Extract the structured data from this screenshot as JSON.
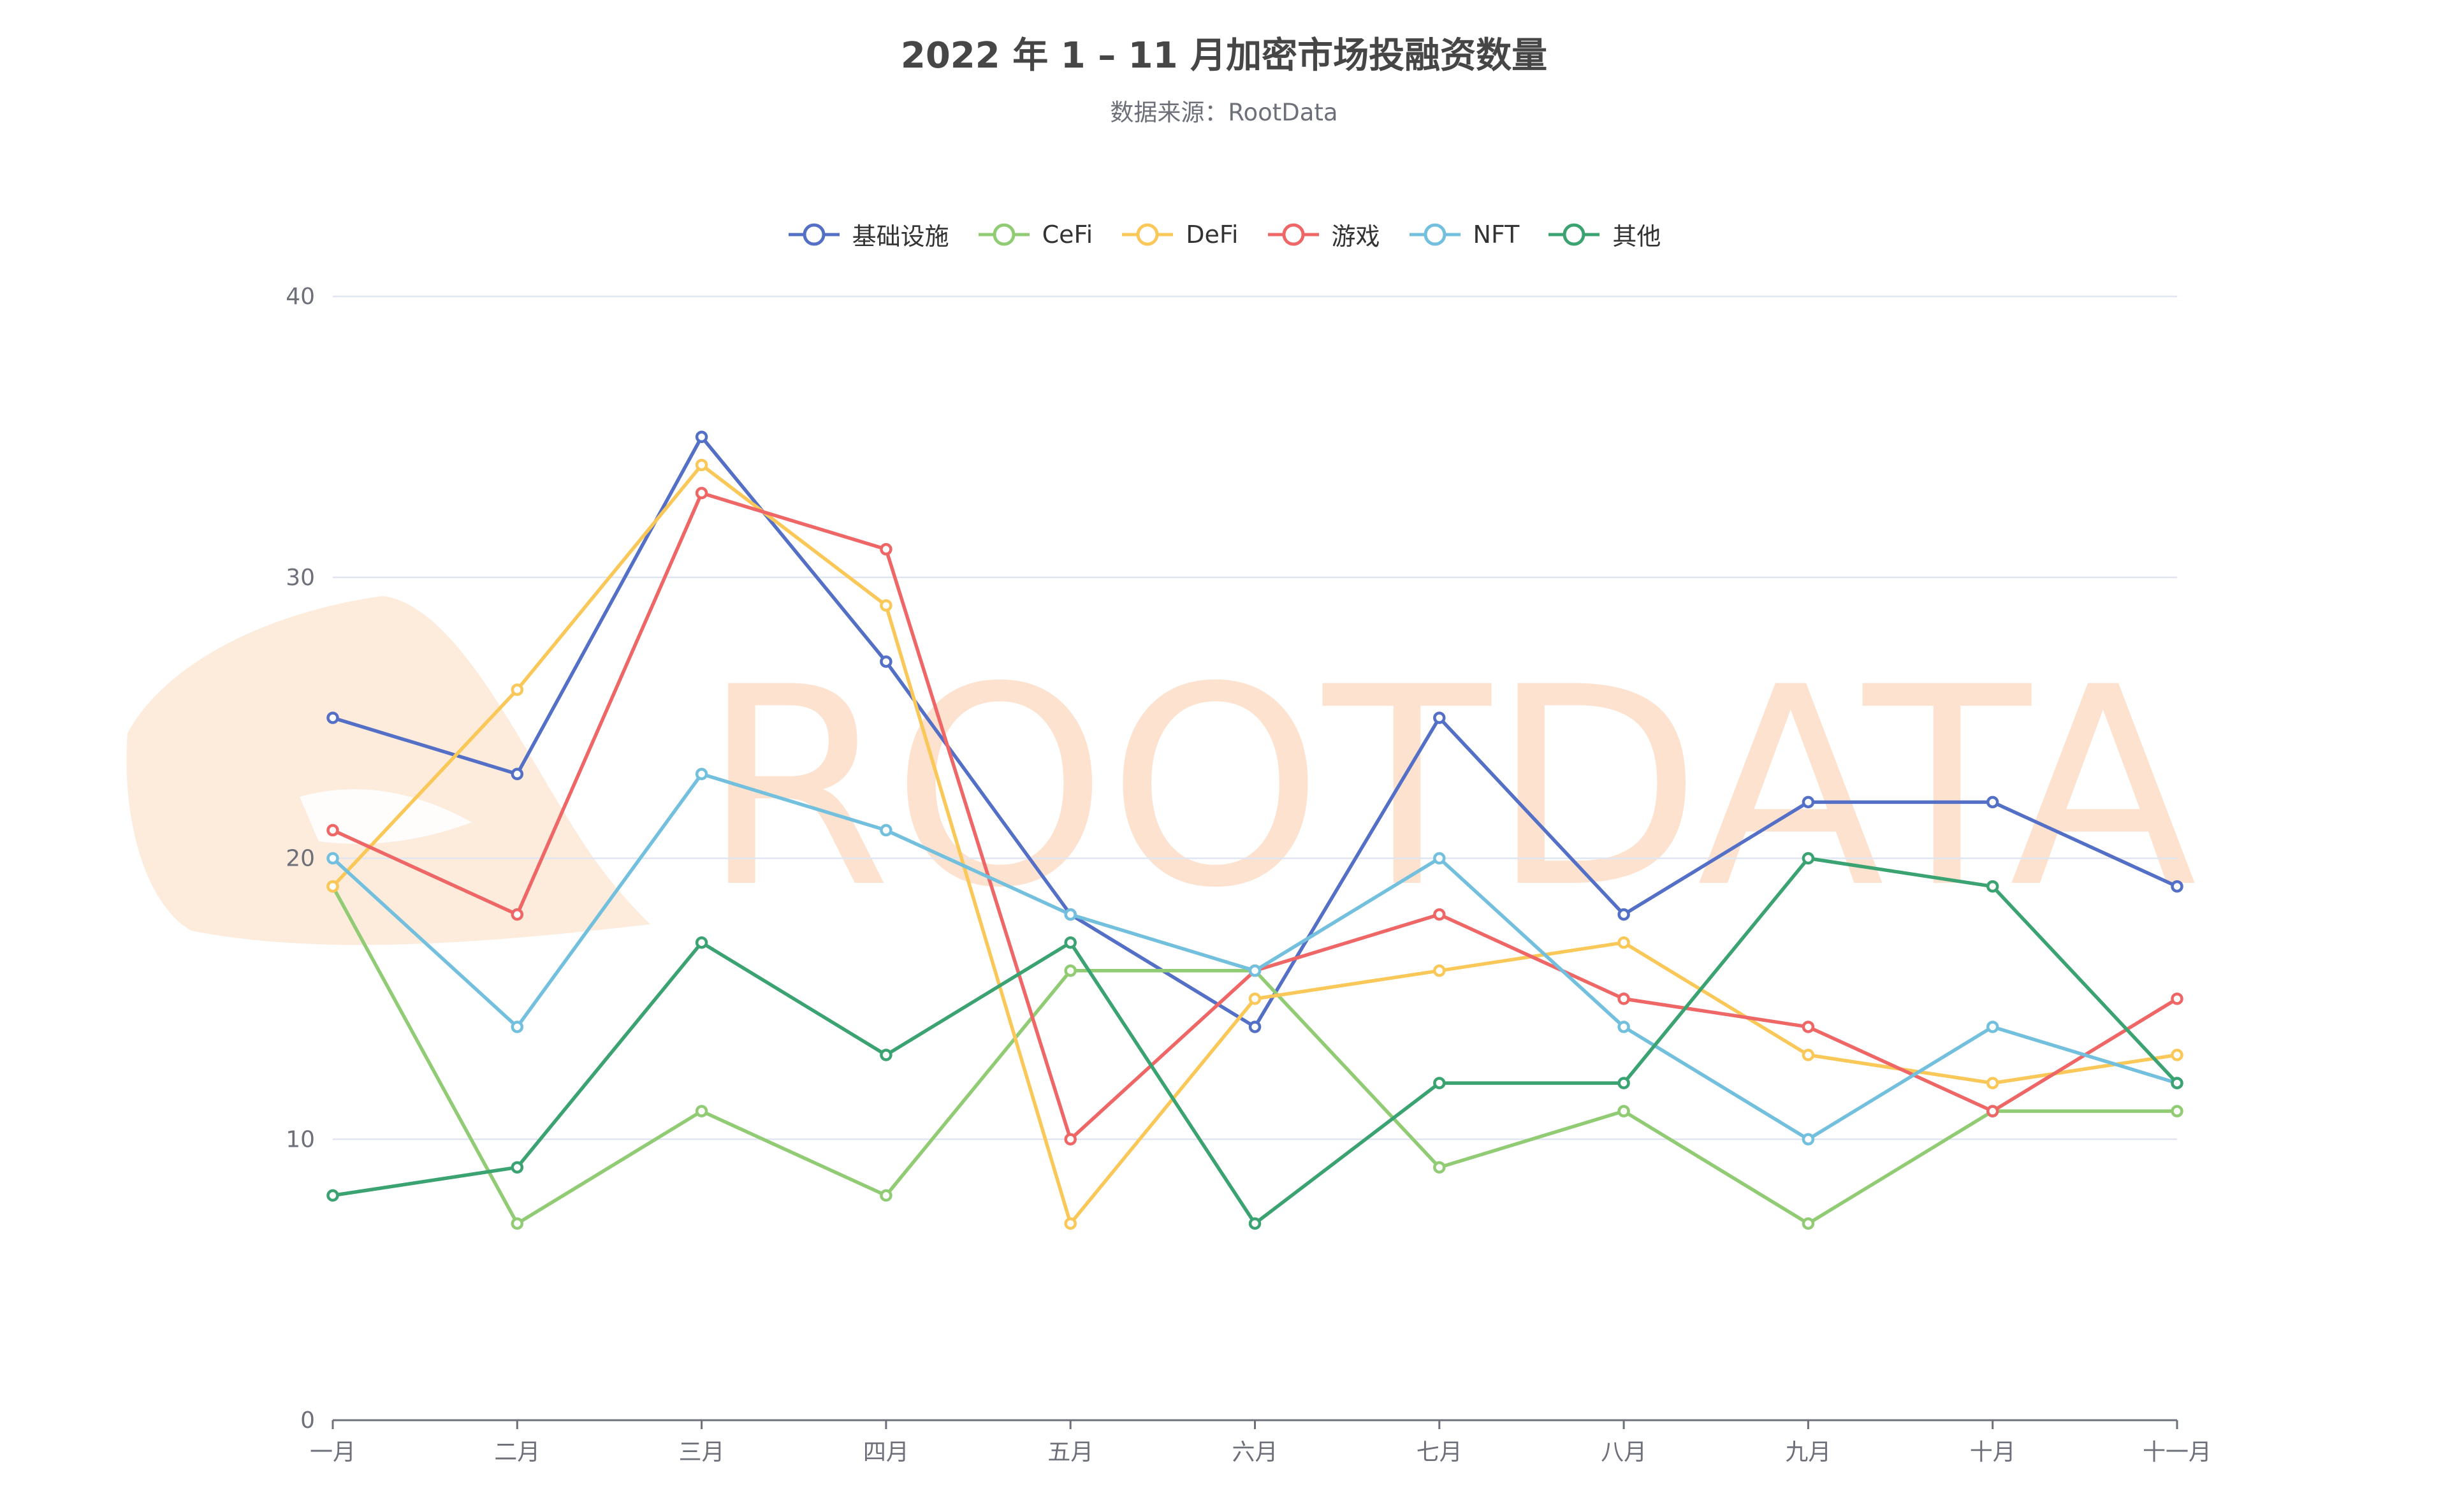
{
  "watermark_text": "ROOTDATA",
  "chart_data": {
    "type": "line",
    "title": "2022 年 1 – 11 月加密市场投融资数量",
    "subtitle": "数据来源：RootData",
    "xlabel": "",
    "ylabel": "",
    "categories": [
      "一月",
      "二月",
      "三月",
      "四月",
      "五月",
      "六月",
      "七月",
      "八月",
      "九月",
      "十月",
      "十一月"
    ],
    "ylim": [
      0,
      40
    ],
    "yticks": [
      0,
      10,
      20,
      30,
      40
    ],
    "grid": true,
    "legend_position": "top-center",
    "series": [
      {
        "name": "基础设施",
        "color": "#5470c6",
        "values": [
          25,
          23,
          35,
          27,
          18,
          14,
          25,
          18,
          22,
          22,
          19
        ]
      },
      {
        "name": "CeFi",
        "color": "#91cc75",
        "values": [
          19,
          7,
          11,
          8,
          16,
          16,
          9,
          11,
          7,
          11,
          11
        ]
      },
      {
        "name": "DeFi",
        "color": "#fac858",
        "values": [
          19,
          26,
          34,
          29,
          7,
          15,
          16,
          17,
          13,
          12,
          13
        ]
      },
      {
        "name": "游戏",
        "color": "#ee6666",
        "values": [
          21,
          18,
          33,
          31,
          10,
          16,
          18,
          15,
          14,
          11,
          15
        ]
      },
      {
        "name": "NFT",
        "color": "#73c0de",
        "values": [
          20,
          14,
          23,
          21,
          18,
          16,
          20,
          14,
          10,
          14,
          12
        ]
      },
      {
        "name": "其他",
        "color": "#3ba272",
        "values": [
          8,
          9,
          17,
          13,
          17,
          7,
          12,
          12,
          20,
          19,
          12
        ]
      }
    ]
  }
}
